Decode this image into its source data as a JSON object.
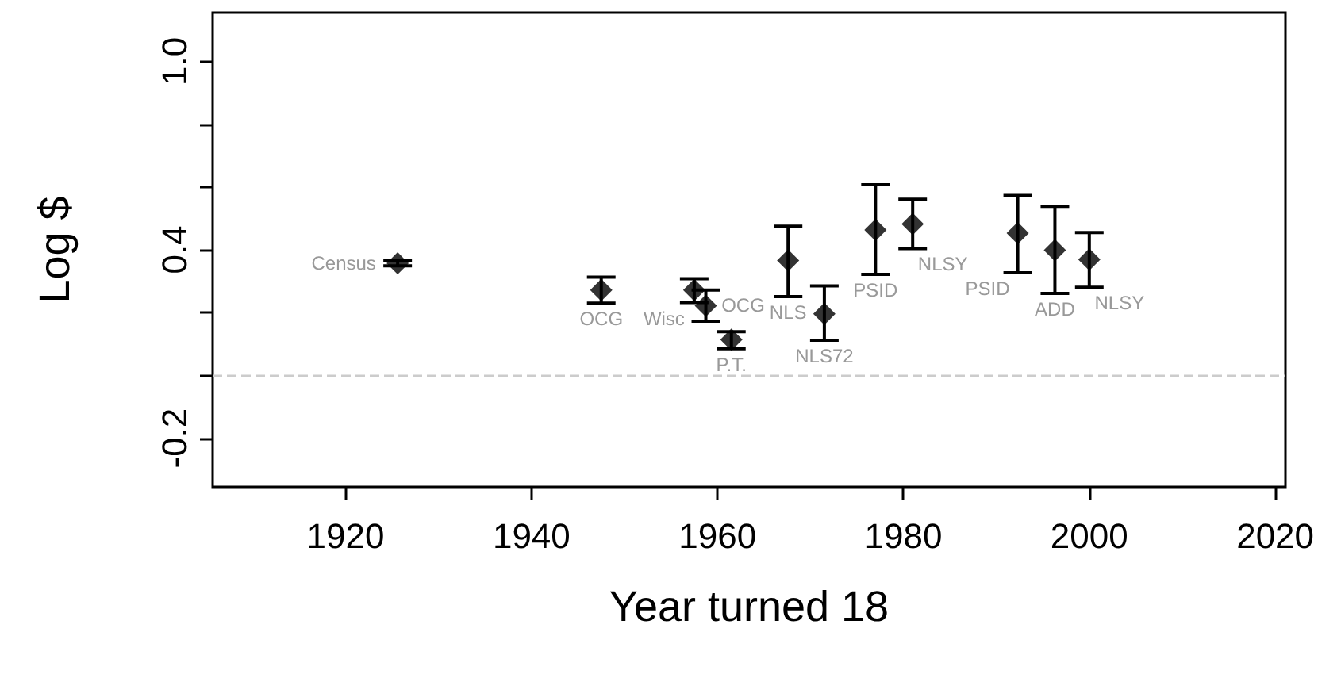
{
  "chart_data": {
    "type": "scatter",
    "xlabel": "Year turned 18",
    "ylabel": "Log $",
    "x": [
      1925.6,
      1947.5,
      1957.5,
      1958.75,
      1961.5,
      1967.6,
      1971.5,
      1977.0,
      1981.0,
      1992.3,
      1996.3,
      2000.0
    ],
    "values": [
      0.357,
      0.272,
      0.272,
      0.222,
      0.114,
      0.366,
      0.196,
      0.463,
      0.482,
      0.453,
      0.399,
      0.369
    ],
    "errors": [
      [
        0.349,
        0.365
      ],
      [
        0.23,
        0.313
      ],
      [
        0.232,
        0.308
      ],
      [
        0.173,
        0.272
      ],
      [
        0.085,
        0.139
      ],
      [
        0.251,
        0.475
      ],
      [
        0.112,
        0.285
      ],
      [
        0.322,
        0.607
      ],
      [
        0.404,
        0.561
      ],
      [
        0.327,
        0.573
      ],
      [
        0.261,
        0.538
      ],
      [
        0.281,
        0.455
      ]
    ],
    "color": "#000000",
    "marker": "diamond",
    "grid": false,
    "xlim": [
      1905.7,
      2021.1
    ],
    "xticks": [
      1920,
      1940,
      1960,
      1980,
      2000,
      2020
    ],
    "ylim": [
      -0.355,
      1.155
    ],
    "yticks": [
      {
        "value": -0.2,
        "label": "-0.2"
      },
      {
        "value": 0,
        "label": null
      },
      {
        "value": 0.2,
        "label": null
      },
      {
        "value": 0.4,
        "label": "0.4"
      },
      {
        "value": 0.6,
        "label": null
      },
      {
        "value": 0.8,
        "label": null
      },
      {
        "value": 1.0,
        "label": "1.0"
      }
    ],
    "ref_lines": [
      {
        "axis": "y",
        "value": 0,
        "label": null,
        "color": "#cccccc",
        "line_style": "dashed"
      }
    ],
    "annotations": [
      {
        "text": "Census",
        "x": 1925.6,
        "y": 0.357
      },
      {
        "text": "OCG",
        "x": 1947.5,
        "y": 0.272
      },
      {
        "text": "Wisc",
        "x": 1957.5,
        "y": 0.272
      },
      {
        "text": "OCG",
        "x": 1958.75,
        "y": 0.222
      },
      {
        "text": "P.T.",
        "x": 1961.5,
        "y": 0.114
      },
      {
        "text": "NLS",
        "x": 1967.6,
        "y": 0.366
      },
      {
        "text": "NLS72",
        "x": 1971.5,
        "y": 0.196
      },
      {
        "text": "PSID",
        "x": 1977.0,
        "y": 0.463
      },
      {
        "text": "NLSY",
        "x": 1981.0,
        "y": 0.482
      },
      {
        "text": "PSID",
        "x": 1992.3,
        "y": 0.453
      },
      {
        "text": "ADD",
        "x": 1996.3,
        "y": 0.399
      },
      {
        "text": "NLSY",
        "x": 2000.0,
        "y": 0.369
      }
    ]
  }
}
